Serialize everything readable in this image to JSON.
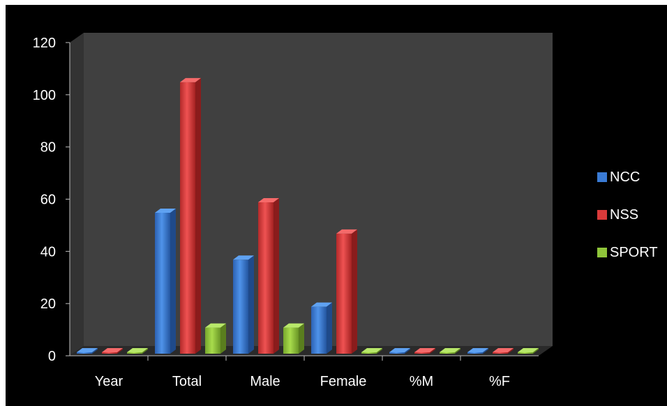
{
  "chart_data": {
    "type": "bar",
    "categories": [
      "Year",
      "Total",
      "Male",
      "Female",
      "%M",
      "%F"
    ],
    "series": [
      {
        "name": "NCC",
        "values": [
          0,
          54,
          36,
          18,
          0,
          0
        ],
        "color": "#3a7bd5"
      },
      {
        "name": "NSS",
        "values": [
          0,
          104,
          58,
          46,
          0,
          0
        ],
        "color": "#d93a3a"
      },
      {
        "name": "SPORT",
        "values": [
          0,
          10,
          10,
          0,
          0,
          0
        ],
        "color": "#8fc53a"
      }
    ],
    "yticks": [
      "0",
      "20",
      "40",
      "60",
      "80",
      "100",
      "120"
    ],
    "ylim": [
      0,
      120
    ],
    "legend_position": "right",
    "background": "#000000",
    "wall_color": "#404040",
    "floor_color": "#2a2a2a"
  }
}
